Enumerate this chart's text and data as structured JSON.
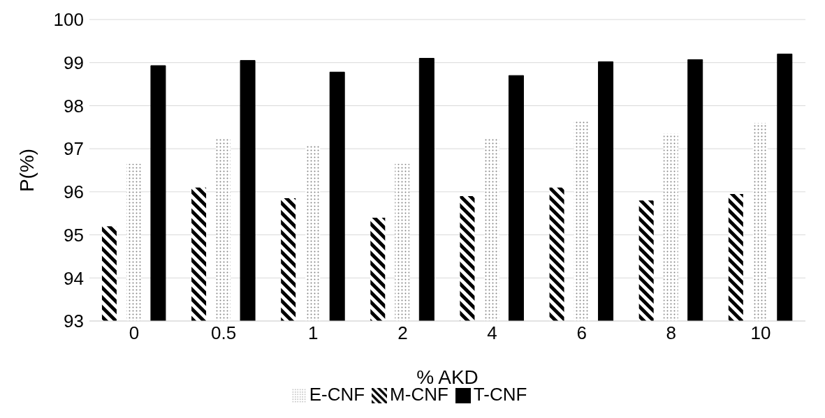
{
  "chart_data": {
    "type": "bar",
    "xlabel": "% AKD",
    "ylabel": "P(%)",
    "categories": [
      "0",
      "0.5",
      "1",
      "2",
      "4",
      "6",
      "8",
      "10"
    ],
    "series": [
      {
        "name": "M-CNF",
        "color": "#000000",
        "values": [
          95.2,
          96.1,
          95.85,
          95.4,
          95.9,
          96.1,
          95.8,
          95.95
        ]
      },
      {
        "name": "E-CNF",
        "color": "#808080",
        "values": [
          96.65,
          97.25,
          97.1,
          96.65,
          97.25,
          97.65,
          97.35,
          97.6
        ]
      },
      {
        "name": "T-CNF",
        "color": "#000000",
        "values": [
          98.93,
          99.05,
          98.78,
          99.1,
          98.7,
          99.02,
          99.07,
          99.2
        ]
      }
    ],
    "ylim": [
      93,
      100
    ],
    "yticks": [
      93,
      94,
      95,
      96,
      97,
      98,
      99,
      100
    ],
    "grid": "y",
    "legend": "bottom"
  }
}
